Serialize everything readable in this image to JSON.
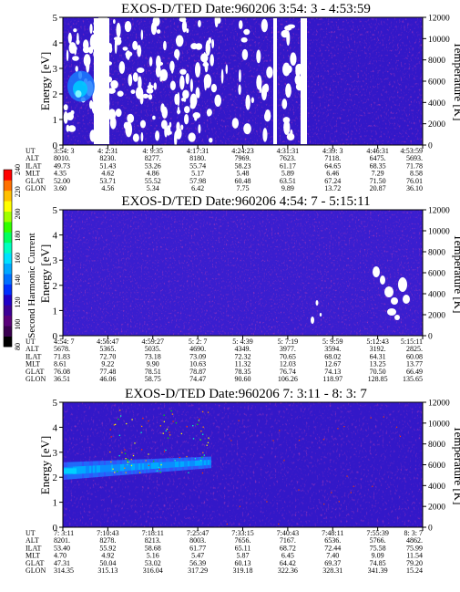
{
  "colorbar": {
    "label": "Second Harmonic Current",
    "ticks": [
      "80",
      "100",
      "120",
      "140",
      "160",
      "180",
      "200",
      "220",
      "240"
    ],
    "colors": [
      "#000000",
      "#3a0050",
      "#5a007a",
      "#3c0096",
      "#2000c8",
      "#0030ff",
      "#0070ff",
      "#00a8ff",
      "#00e0ff",
      "#00ffc0",
      "#00ff60",
      "#30ff00",
      "#a0ff00",
      "#ffff00",
      "#ffc000",
      "#ff7000",
      "#ff0000"
    ]
  },
  "chart_data": [
    {
      "type": "heatmap",
      "title": "EXOS-D/TED   Date:960206  3:54: 3 - 4:53:59",
      "ylabel": "Energy [eV]",
      "ylabel_right": "Temperature [K]",
      "yticks": [
        "0",
        "1",
        "2",
        "3",
        "4",
        "5"
      ],
      "yticks_right": [
        "0",
        "2000",
        "4000",
        "6000",
        "8000",
        "10000",
        "12000"
      ],
      "ylim": [
        0,
        5
      ],
      "ylim_right": [
        0,
        12000
      ],
      "row_labels": [
        "UT",
        "ALT",
        "ILAT",
        "MLT",
        "GLAT",
        "GLON"
      ],
      "columns": [
        [
          "3:54: 3",
          "8010.",
          "49.73",
          "4.35",
          "52.00",
          "3.60"
        ],
        [
          "4: 2:31",
          "8230.",
          "51.43",
          "4.62",
          "53.71",
          "4.56"
        ],
        [
          "4: 9:35",
          "8277.",
          "53.26",
          "4.86",
          "55.52",
          "5.34"
        ],
        [
          "4:17:31",
          "8180.",
          "55.74",
          "5.17",
          "57.98",
          "6.42"
        ],
        [
          "4:24:23",
          "7969.",
          "58.23",
          "5.48",
          "60.48",
          "7.75"
        ],
        [
          "4:31:31",
          "7623.",
          "61.17",
          "5.89",
          "63.51",
          "9.89"
        ],
        [
          "4:39: 3",
          "7118.",
          "64.65",
          "6.46",
          "67.24",
          "13.72"
        ],
        [
          "4:46:31",
          "6475.",
          "68.35",
          "7.29",
          "71.50",
          "20.87"
        ],
        [
          "4:53:59",
          "5693.",
          "71.78",
          "8.58",
          "76.01",
          "36.10"
        ]
      ]
    },
    {
      "type": "heatmap",
      "title": "EXOS-D/TED   Date:960206  4:54: 7 - 5:15:11",
      "ylabel": "Energy [eV]",
      "ylabel_right": "Temperature [K]",
      "yticks": [
        "0",
        "1",
        "2",
        "3",
        "4",
        "5"
      ],
      "yticks_right": [
        "0",
        "2000",
        "4000",
        "6000",
        "8000",
        "10000",
        "12000"
      ],
      "ylim": [
        0,
        5
      ],
      "ylim_right": [
        0,
        12000
      ],
      "row_labels": [
        "UT",
        "ALT",
        "ILAT",
        "MLT",
        "GLAT",
        "GLON"
      ],
      "columns": [
        [
          "4:54: 7",
          "5678.",
          "71.83",
          "8.61",
          "76.08",
          "36.51"
        ],
        [
          "4:56:47",
          "5365.",
          "72.70",
          "9.22",
          "77.48",
          "46.06"
        ],
        [
          "4:59:27",
          "5035.",
          "73.18",
          "9.90",
          "78.51",
          "58.75"
        ],
        [
          "5: 2: 7",
          "4690.",
          "73.09",
          "10.63",
          "78.87",
          "74.47"
        ],
        [
          "5: 4:39",
          "4349.",
          "72.32",
          "11.32",
          "78.35",
          "90.60"
        ],
        [
          "5: 7:19",
          "3977.",
          "70.65",
          "12.03",
          "76.74",
          "106.26"
        ],
        [
          "5: 9:59",
          "3594.",
          "68.02",
          "12.67",
          "74.13",
          "118.97"
        ],
        [
          "5:12:43",
          "3192.",
          "64.31",
          "13.25",
          "70.50",
          "128.85"
        ],
        [
          "5:15:11",
          "2825.",
          "60.08",
          "13.77",
          "66.49",
          "135.65"
        ]
      ]
    },
    {
      "type": "heatmap",
      "title": "EXOS-D/TED   Date:960206  7: 3:11 - 8: 3: 7",
      "ylabel": "Energy [eV]",
      "ylabel_right": "Temperature [K]",
      "yticks": [
        "0",
        "1",
        "2",
        "3",
        "4",
        "5"
      ],
      "yticks_right": [
        "0",
        "2000",
        "4000",
        "6000",
        "8000",
        "10000",
        "12000"
      ],
      "ylim": [
        0,
        5
      ],
      "ylim_right": [
        0,
        12000
      ],
      "row_labels": [
        "UT",
        "ALT",
        "ILAT",
        "MLT",
        "GLAT",
        "GLON"
      ],
      "columns": [
        [
          "7: 3:11",
          "8201.",
          "53.40",
          "4.70",
          "47.31",
          "314.35"
        ],
        [
          "7:10:43",
          "8278.",
          "55.92",
          "4.92",
          "50.04",
          "315.13"
        ],
        [
          "7:18:11",
          "8213.",
          "58.68",
          "5.16",
          "53.02",
          "316.04"
        ],
        [
          "7:25:47",
          "8003.",
          "61.77",
          "5.47",
          "56.39",
          "317.29"
        ],
        [
          "7:33:15",
          "7656.",
          "65.11",
          "5.87",
          "60.13",
          "319.18"
        ],
        [
          "7:40:43",
          "7167.",
          "68.72",
          "6.45",
          "64.42",
          "322.36"
        ],
        [
          "7:48:11",
          "6536.",
          "72.44",
          "7.40",
          "69.37",
          "328.31"
        ],
        [
          "7:55:39",
          "5766.",
          "75.58",
          "9.09",
          "74.85",
          "341.39"
        ],
        [
          "8: 3: 7",
          "4862.",
          "75.99",
          "11.54",
          "79.20",
          "15.24"
        ]
      ]
    }
  ]
}
